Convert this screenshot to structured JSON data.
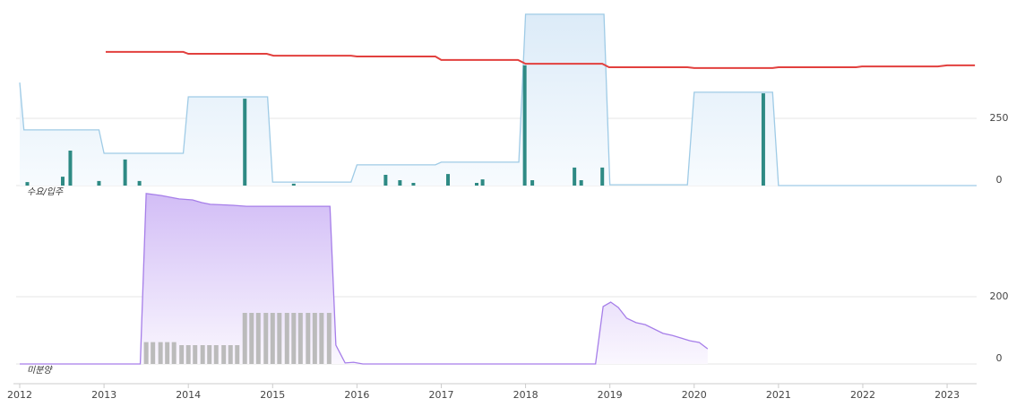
{
  "chart_data": [
    {
      "type": "combo",
      "label": "수요/입주",
      "xlim": [
        2012,
        2023.35
      ],
      "ylim": [
        0,
        650
      ],
      "yticks": [
        0,
        250
      ],
      "grid": true,
      "series": [
        {
          "kind": "area",
          "color": "#9fcbe6",
          "x": [
            2012.0,
            2012.05,
            2012.94,
            2013.0,
            2013.94,
            2014.0,
            2014.94,
            2015.0,
            2015.93,
            2016.0,
            2016.93,
            2017.0,
            2017.92,
            2018.0,
            2018.93,
            2019.0,
            2019.92,
            2020.0,
            2020.93,
            2021.0,
            2023.35
          ],
          "values": [
            383,
            207,
            207,
            120,
            120,
            330,
            330,
            13,
            13,
            77,
            77,
            87,
            87,
            637,
            637,
            3,
            3,
            347,
            347,
            0,
            0
          ]
        },
        {
          "kind": "line",
          "color": "#e2403e",
          "x": [
            2013.02,
            2013.94,
            2014.0,
            2014.93,
            2015.01,
            2015.93,
            2016.0,
            2016.93,
            2017.0,
            2017.91,
            2018.0,
            2018.91,
            2018.99,
            2019.92,
            2020.0,
            2020.93,
            2021.0,
            2021.92,
            2021.99,
            2022.89,
            2023.0,
            2023.33
          ],
          "values": [
            497,
            497,
            490,
            490,
            483,
            483,
            480,
            480,
            467,
            467,
            453,
            453,
            440,
            440,
            437,
            437,
            440,
            440,
            443,
            443,
            447,
            447
          ]
        },
        {
          "kind": "bar",
          "color": "#2e8a84",
          "x": [
            2012.09,
            2012.51,
            2012.6,
            2012.94,
            2013.25,
            2013.42,
            2014.67,
            2015.25,
            2016.34,
            2016.51,
            2016.67,
            2017.08,
            2017.42,
            2017.49,
            2017.99,
            2018.08,
            2018.58,
            2018.66,
            2018.91,
            2020.82
          ],
          "values": [
            13,
            33,
            130,
            17,
            97,
            17,
            323,
            7,
            40,
            20,
            10,
            43,
            10,
            23,
            447,
            20,
            67,
            20,
            67,
            343
          ]
        }
      ]
    },
    {
      "type": "combo",
      "label": "미분양",
      "xlim": [
        2012,
        2023.35
      ],
      "ylim": [
        0,
        520
      ],
      "yticks": [
        0,
        200
      ],
      "grid": true,
      "xticks": [
        2012,
        2013,
        2014,
        2015,
        2016,
        2017,
        2018,
        2019,
        2020,
        2021,
        2022,
        2023
      ],
      "series": [
        {
          "kind": "area",
          "color": "#a67ee9",
          "x": [
            2012.0,
            2013.43,
            2013.5,
            2013.68,
            2013.89,
            2014.05,
            2014.16,
            2014.26,
            2014.53,
            2014.69,
            2015.68,
            2015.75,
            2015.86,
            2015.96,
            2016.07,
            2018.83,
            2018.92,
            2019.01,
            2019.1,
            2019.2,
            2019.31,
            2019.42,
            2019.63,
            2019.74,
            2019.95,
            2020.06,
            2020.16
          ],
          "values": [
            0,
            0,
            507,
            501,
            491,
            488,
            480,
            475,
            472,
            469,
            469,
            56,
            3,
            5,
            0,
            0,
            171,
            184,
            168,
            136,
            123,
            117,
            91,
            85,
            69,
            64,
            45
          ]
        },
        {
          "kind": "bar",
          "color": "#bbbbbb",
          "x": [
            2013.5,
            2013.58,
            2013.67,
            2013.75,
            2013.83,
            2013.92,
            2014.0,
            2014.08,
            2014.17,
            2014.25,
            2014.33,
            2014.42,
            2014.5,
            2014.58,
            2014.67,
            2014.75,
            2014.83,
            2014.92,
            2015.0,
            2015.08,
            2015.17,
            2015.25,
            2015.33,
            2015.42,
            2015.5,
            2015.58,
            2015.67
          ],
          "values": [
            65,
            65,
            65,
            65,
            65,
            56,
            56,
            56,
            56,
            56,
            56,
            56,
            56,
            56,
            152,
            152,
            152,
            152,
            152,
            152,
            152,
            152,
            152,
            152,
            152,
            152,
            152
          ]
        }
      ]
    }
  ]
}
